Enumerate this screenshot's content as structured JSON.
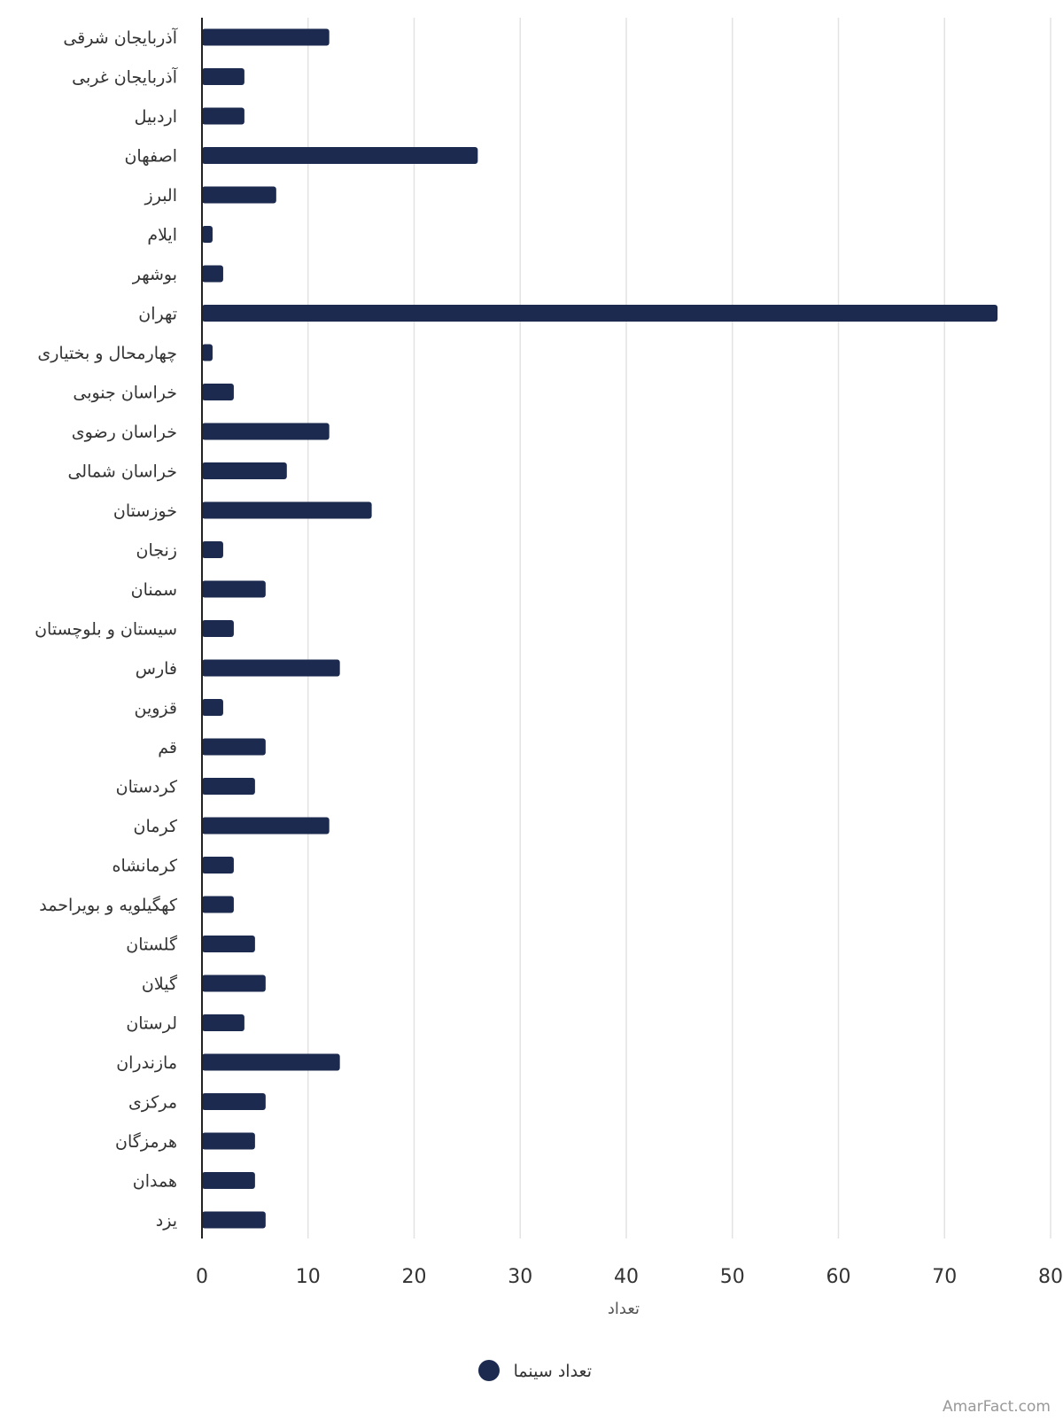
{
  "chart_data": {
    "type": "bar",
    "orientation": "horizontal",
    "categories": [
      "آذربایجان شرقی",
      "آذربایجان غربی",
      "اردبیل",
      "اصفهان",
      "البرز",
      "ایلام",
      "بوشهر",
      "تهران",
      "چهارمحال و بختیاری",
      "خراسان جنوبی",
      "خراسان رضوی",
      "خراسان شمالی",
      "خوزستان",
      "زنجان",
      "سمنان",
      "سیستان و بلوچستان",
      "فارس",
      "قزوین",
      "قم",
      "کردستان",
      "کرمان",
      "کرمانشاه",
      "کهگیلویه و بویراحمد",
      "گلستان",
      "گیلان",
      "لرستان",
      "مازندران",
      "مرکزی",
      "هرمزگان",
      "همدان",
      "یزد"
    ],
    "series": [
      {
        "name": "تعداد سینما",
        "values": [
          12,
          4,
          4,
          26,
          7,
          1,
          2,
          75,
          1,
          3,
          12,
          8,
          16,
          2,
          6,
          3,
          13,
          2,
          6,
          5,
          12,
          3,
          3,
          5,
          6,
          4,
          13,
          6,
          5,
          5,
          6
        ]
      }
    ],
    "xlabel": "تعداد",
    "xlim": [
      0,
      80
    ],
    "xticks": [
      0,
      10,
      20,
      30,
      40,
      50,
      60,
      70,
      80
    ],
    "xtick_labels": [
      "0",
      "10",
      "20",
      "30",
      "40",
      "50",
      "60",
      "70",
      "80"
    ],
    "grid": true,
    "legend_position": "bottom",
    "bar_color": "#1b2a4e"
  },
  "footer": {
    "credit": "AmarFact.com"
  }
}
